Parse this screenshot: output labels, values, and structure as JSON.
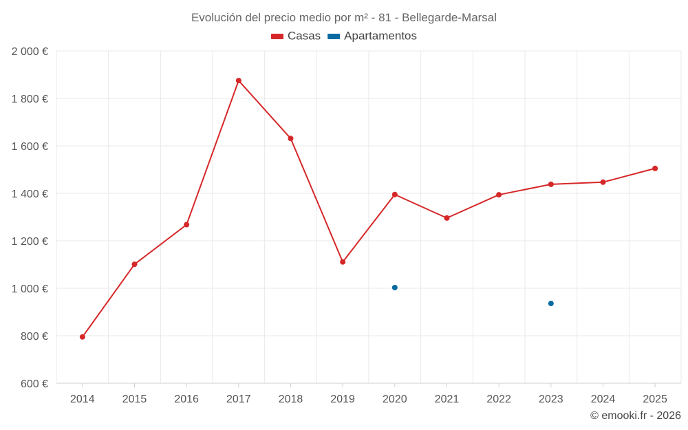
{
  "chart_data": {
    "type": "line",
    "title": "Evolución del precio medio por m² - 81 - Bellegarde-Marsal",
    "categories": [
      "2014",
      "2015",
      "2016",
      "2017",
      "2018",
      "2019",
      "2020",
      "2021",
      "2022",
      "2023",
      "2024",
      "2025"
    ],
    "y_tick_labels": [
      "600 €",
      "800 €",
      "1 000 €",
      "1 200 €",
      "1 400 €",
      "1 600 €",
      "1 800 €",
      "2 000 €"
    ],
    "ylim": [
      600,
      2000
    ],
    "y_tick_step": 200,
    "grid": true,
    "legend_position": "top-center",
    "series": [
      {
        "name": "Casas",
        "color": "#d62728",
        "connect_lines": true,
        "values": [
          795,
          1101,
          1268,
          1875,
          1631,
          1111,
          1395,
          1296,
          1394,
          1438,
          1447,
          1505
        ]
      },
      {
        "name": "Apartamentos",
        "color": "#0a6aa1",
        "connect_lines": false,
        "values": [
          null,
          null,
          null,
          null,
          null,
          null,
          1003,
          null,
          null,
          936,
          null,
          null
        ]
      }
    ]
  },
  "credit": "© emooki.fr - 2026"
}
